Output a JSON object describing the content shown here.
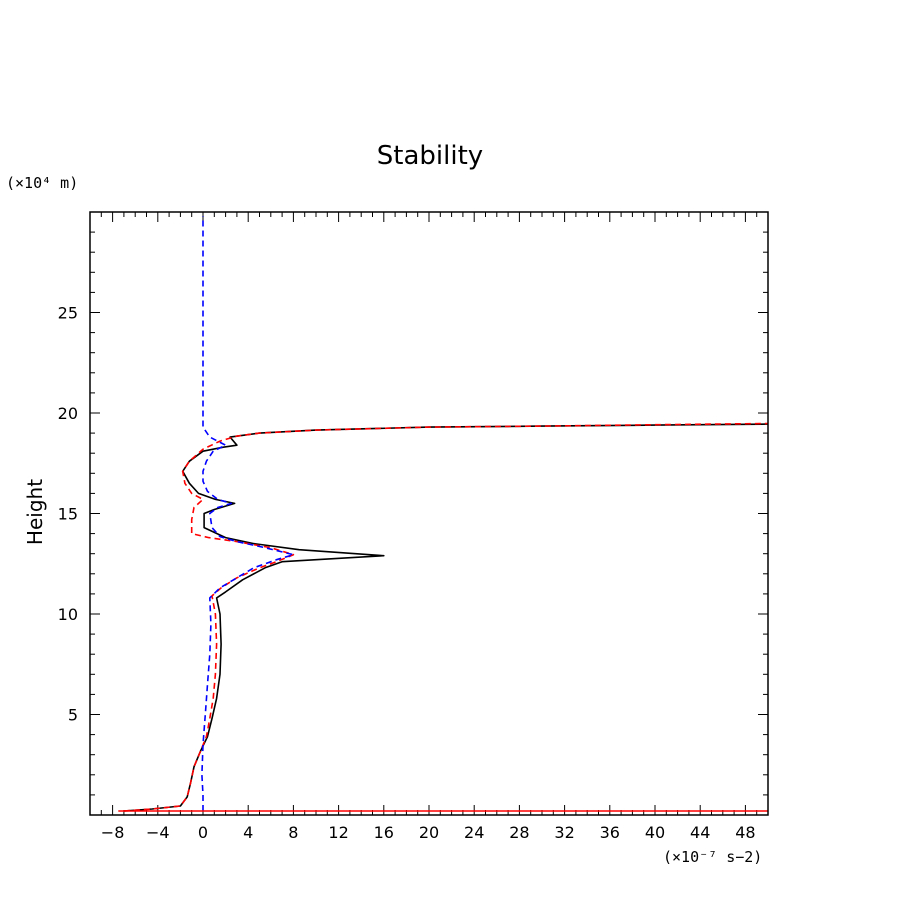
{
  "chart_data": {
    "type": "line",
    "title": "Stability",
    "xlabel": "",
    "x_unit": "(×10⁻⁷ s−2)",
    "ylabel": "Height",
    "y_unit": "(×10⁴ m)",
    "xlim": [
      -10,
      50
    ],
    "ylim": [
      0,
      30
    ],
    "x_ticks": [
      -8,
      -4,
      0,
      4,
      8,
      12,
      16,
      20,
      24,
      28,
      32,
      36,
      40,
      44,
      48
    ],
    "y_ticks": [
      5,
      10,
      15,
      20,
      25
    ],
    "grid": false,
    "series": [
      {
        "color": "#000000",
        "dash": "solid",
        "points": [
          [
            -7,
            0.2
          ],
          [
            -4.5,
            0.3
          ],
          [
            -2,
            0.45
          ],
          [
            -1.4,
            0.9
          ],
          [
            -1.1,
            1.6
          ],
          [
            -0.8,
            2.4
          ],
          [
            -0.2,
            3.2
          ],
          [
            0.4,
            3.9
          ],
          [
            0.8,
            4.8
          ],
          [
            1.2,
            5.8
          ],
          [
            1.5,
            7
          ],
          [
            1.6,
            8.5
          ],
          [
            1.5,
            10
          ],
          [
            1.2,
            10.8
          ],
          [
            2,
            11.1
          ],
          [
            3.5,
            11.7
          ],
          [
            5.5,
            12.3
          ],
          [
            7,
            12.6
          ],
          [
            16,
            12.9
          ],
          [
            8.5,
            13.2
          ],
          [
            4.5,
            13.5
          ],
          [
            2,
            13.8
          ],
          [
            0.1,
            14.3
          ],
          [
            0.1,
            15
          ],
          [
            1,
            15.2
          ],
          [
            2.8,
            15.5
          ],
          [
            1.1,
            15.7
          ],
          [
            -0.4,
            16
          ],
          [
            -1.2,
            16.5
          ],
          [
            -1.8,
            17.1
          ],
          [
            -1.2,
            17.6
          ],
          [
            0,
            18.1
          ],
          [
            1.8,
            18.3
          ],
          [
            3,
            18.4
          ],
          [
            2.4,
            18.8
          ],
          [
            5,
            19
          ],
          [
            10,
            19.15
          ],
          [
            20,
            19.3
          ],
          [
            30,
            19.35
          ],
          [
            40,
            19.4
          ],
          [
            50,
            19.45
          ]
        ]
      },
      {
        "color": "#ff0000",
        "dash": "dashed",
        "points": [
          [
            -7,
            0.2
          ],
          [
            -4.5,
            0.3
          ],
          [
            -2,
            0.45
          ],
          [
            -1.4,
            0.9
          ],
          [
            -1.1,
            1.6
          ],
          [
            -0.8,
            2.4
          ],
          [
            -0.2,
            3.2
          ],
          [
            0.3,
            3.9
          ],
          [
            0.6,
            4.8
          ],
          [
            0.9,
            5.8
          ],
          [
            1.1,
            7
          ],
          [
            1.2,
            8.5
          ],
          [
            1.1,
            10
          ],
          [
            0.8,
            10.9
          ],
          [
            1.6,
            11.3
          ],
          [
            3,
            11.8
          ],
          [
            5,
            12.3
          ],
          [
            6.5,
            12.6
          ],
          [
            8,
            12.95
          ],
          [
            6,
            13.3
          ],
          [
            3,
            13.6
          ],
          [
            0.5,
            13.8
          ],
          [
            -1,
            14
          ],
          [
            -1,
            14.7
          ],
          [
            -0.8,
            15.3
          ],
          [
            0,
            15.7
          ],
          [
            -1,
            16
          ],
          [
            -1.6,
            16.5
          ],
          [
            -1.8,
            17.1
          ],
          [
            -1.2,
            17.6
          ],
          [
            0,
            18.2
          ],
          [
            1.5,
            18.6
          ],
          [
            3,
            18.85
          ],
          [
            5,
            19
          ],
          [
            10,
            19.15
          ],
          [
            20,
            19.3
          ],
          [
            30,
            19.35
          ],
          [
            40,
            19.42
          ],
          [
            50,
            19.48
          ]
        ]
      },
      {
        "color": "#0000ff",
        "dash": "dashed",
        "points": [
          [
            0,
            0.2
          ],
          [
            0,
            1
          ],
          [
            -0.1,
            2
          ],
          [
            0,
            3.5
          ],
          [
            0.2,
            5
          ],
          [
            0.4,
            6.5
          ],
          [
            0.6,
            8
          ],
          [
            0.7,
            9.5
          ],
          [
            0.6,
            10.8
          ],
          [
            1.5,
            11.3
          ],
          [
            3,
            11.8
          ],
          [
            4.5,
            12.3
          ],
          [
            6.5,
            12.7
          ],
          [
            8,
            12.95
          ],
          [
            5.5,
            13.3
          ],
          [
            3,
            13.6
          ],
          [
            1.5,
            13.85
          ],
          [
            0.8,
            14.3
          ],
          [
            0.6,
            15
          ],
          [
            1.3,
            15.3
          ],
          [
            2.5,
            15.5
          ],
          [
            1.3,
            15.7
          ],
          [
            0.4,
            16.1
          ],
          [
            0,
            16.6
          ],
          [
            0,
            17.1
          ],
          [
            0.3,
            17.6
          ],
          [
            0.9,
            18.1
          ],
          [
            2,
            18.4
          ],
          [
            0.6,
            18.8
          ],
          [
            0,
            19.3
          ],
          [
            0,
            20
          ],
          [
            0,
            22
          ],
          [
            0,
            25
          ],
          [
            0,
            28
          ],
          [
            0,
            29.8
          ]
        ]
      },
      {
        "color": "#ff0000",
        "dash": "solid",
        "points": [
          [
            -7.5,
            0.2
          ],
          [
            50,
            0.2
          ]
        ]
      }
    ]
  }
}
